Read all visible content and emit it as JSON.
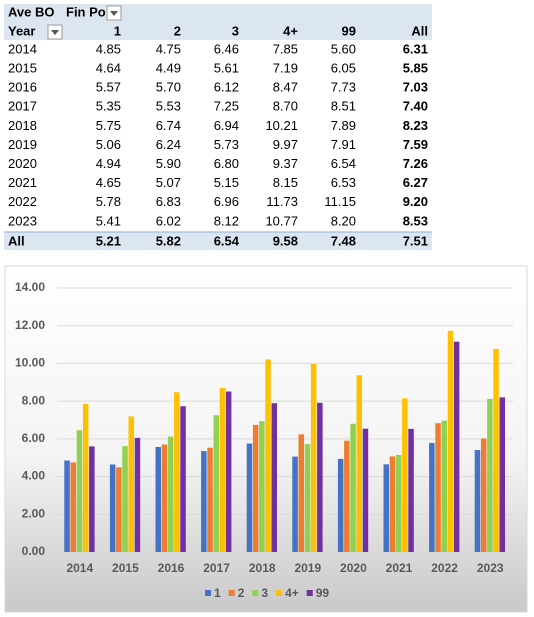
{
  "table": {
    "header": [
      "Ave BO",
      "Fin Po"
    ],
    "columns": [
      "Year",
      "1",
      "2",
      "3",
      "4+",
      "99",
      "All"
    ],
    "rows": [
      [
        "2014",
        "4.85",
        "4.75",
        "6.46",
        "7.85",
        "5.60",
        "6.31"
      ],
      [
        "2015",
        "4.64",
        "4.49",
        "5.61",
        "7.19",
        "6.05",
        "5.85"
      ],
      [
        "2016",
        "5.57",
        "5.70",
        "6.12",
        "8.47",
        "7.73",
        "7.03"
      ],
      [
        "2017",
        "5.35",
        "5.53",
        "7.25",
        "8.70",
        "8.51",
        "7.40"
      ],
      [
        "2018",
        "5.75",
        "6.74",
        "6.94",
        "10.21",
        "7.89",
        "8.23"
      ],
      [
        "2019",
        "5.06",
        "6.24",
        "5.73",
        "9.97",
        "7.91",
        "7.59"
      ],
      [
        "2020",
        "4.94",
        "5.90",
        "6.80",
        "9.37",
        "6.54",
        "7.26"
      ],
      [
        "2021",
        "4.65",
        "5.07",
        "5.15",
        "8.15",
        "6.53",
        "6.27"
      ],
      [
        "2022",
        "5.78",
        "6.83",
        "6.96",
        "11.73",
        "11.15",
        "9.20"
      ],
      [
        "2023",
        "5.41",
        "6.02",
        "8.12",
        "10.77",
        "8.20",
        "8.53"
      ]
    ],
    "total": [
      "All",
      "5.21",
      "5.82",
      "6.54",
      "9.58",
      "7.48",
      "7.51"
    ]
  },
  "chart_data": {
    "type": "bar",
    "categories": [
      "2014",
      "2015",
      "2016",
      "2017",
      "2018",
      "2019",
      "2020",
      "2021",
      "2022",
      "2023"
    ],
    "series": [
      {
        "name": "1",
        "color": "#4472c4",
        "values": [
          4.85,
          4.64,
          5.57,
          5.35,
          5.75,
          5.06,
          4.94,
          4.65,
          5.78,
          5.41
        ]
      },
      {
        "name": "2",
        "color": "#ed7d31",
        "values": [
          4.75,
          4.49,
          5.7,
          5.53,
          6.74,
          6.24,
          5.9,
          5.07,
          6.83,
          6.02
        ]
      },
      {
        "name": "3",
        "color": "#92d050",
        "values": [
          6.46,
          5.61,
          6.12,
          7.25,
          6.94,
          5.73,
          6.8,
          5.15,
          6.96,
          8.12
        ]
      },
      {
        "name": "4+",
        "color": "#ffc000",
        "values": [
          7.85,
          7.19,
          8.47,
          8.7,
          10.21,
          9.97,
          9.37,
          8.15,
          11.73,
          10.77
        ]
      },
      {
        "name": "99",
        "color": "#7030a0",
        "values": [
          5.6,
          6.05,
          7.73,
          8.51,
          7.89,
          7.91,
          6.54,
          6.53,
          11.15,
          8.2
        ]
      }
    ],
    "ylim": [
      0,
      14
    ],
    "yticks": [
      {
        "value": 0,
        "label": "0.00"
      },
      {
        "value": 2,
        "label": "2.00"
      },
      {
        "value": 4,
        "label": "4.00"
      },
      {
        "value": 6,
        "label": "6.00"
      },
      {
        "value": 8,
        "label": "8.00"
      },
      {
        "value": 10,
        "label": "10.00"
      },
      {
        "value": 12,
        "label": "12.00"
      },
      {
        "value": 14,
        "label": "14.00"
      }
    ],
    "grid": true,
    "legend": "bottom"
  }
}
